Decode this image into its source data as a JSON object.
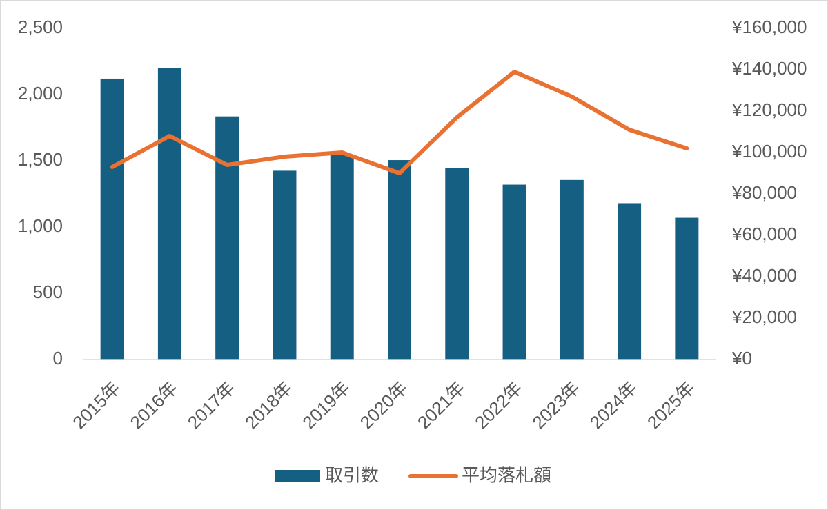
{
  "chart_data": {
    "type": "bar",
    "categories": [
      "2015年",
      "2016年",
      "2017年",
      "2018年",
      "2019年",
      "2020年",
      "2021年",
      "2022年",
      "2023年",
      "2024年",
      "2025年"
    ],
    "series": [
      {
        "name": "取引数",
        "type": "bar",
        "axis": "left",
        "color": "#156082",
        "values": [
          2120,
          2200,
          1835,
          1425,
          1545,
          1505,
          1445,
          1320,
          1355,
          1180,
          1070
        ]
      },
      {
        "name": "平均落札額",
        "type": "line",
        "axis": "right",
        "color": "#e97132",
        "values": [
          93000,
          108000,
          94000,
          98000,
          100000,
          90000,
          117000,
          139000,
          127000,
          111000,
          102000
        ]
      }
    ],
    "y_left": {
      "ylim": [
        0,
        2500
      ],
      "ticks": [
        0,
        500,
        1000,
        1500,
        2000,
        2500
      ],
      "tick_labels": [
        "0",
        "500",
        "1,000",
        "1,500",
        "2,000",
        "2,500"
      ]
    },
    "y_right": {
      "ylim": [
        0,
        160000
      ],
      "ticks": [
        0,
        20000,
        40000,
        60000,
        80000,
        100000,
        120000,
        140000,
        160000
      ],
      "tick_labels": [
        "¥0",
        "¥20,000",
        "¥40,000",
        "¥60,000",
        "¥80,000",
        "¥100,000",
        "¥120,000",
        "¥140,000",
        "¥160,000"
      ]
    },
    "title": "",
    "xlabel": "",
    "ylabel": "",
    "grid": false,
    "legend": "bottom",
    "legend_items": [
      "取引数",
      "平均落札額"
    ],
    "axis_color": "#d9d9d9",
    "text_color": "#595959"
  }
}
